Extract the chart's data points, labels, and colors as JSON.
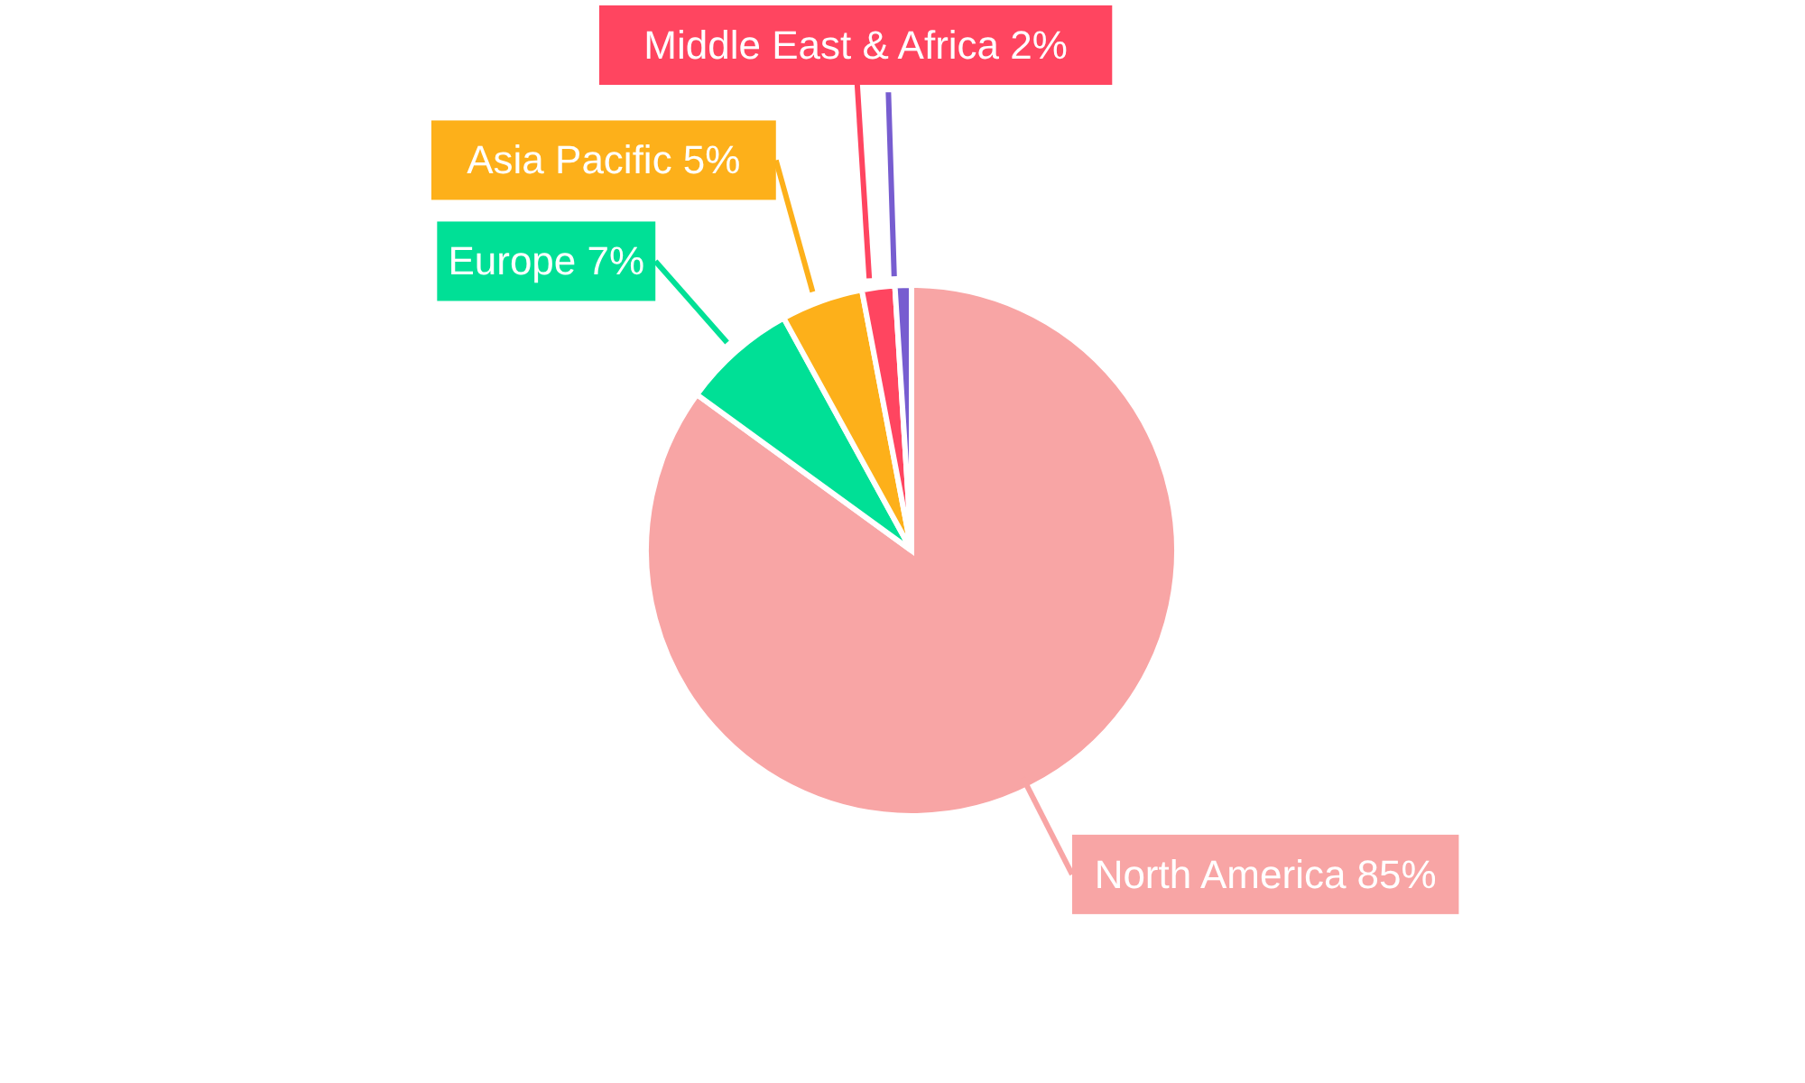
{
  "chart_data": {
    "type": "pie",
    "categories": [
      "North America",
      "Europe",
      "Asia Pacific",
      "Middle East & Africa",
      null
    ],
    "values": [
      85,
      7,
      5,
      2,
      1
    ],
    "value_labels": [
      "85%",
      "7%",
      "5%",
      "2%",
      null
    ],
    "colors": [
      "#f8a5a5",
      "#00e096",
      "#fdb01a",
      "#ff4560",
      "#775dd0"
    ],
    "legend": false
  }
}
